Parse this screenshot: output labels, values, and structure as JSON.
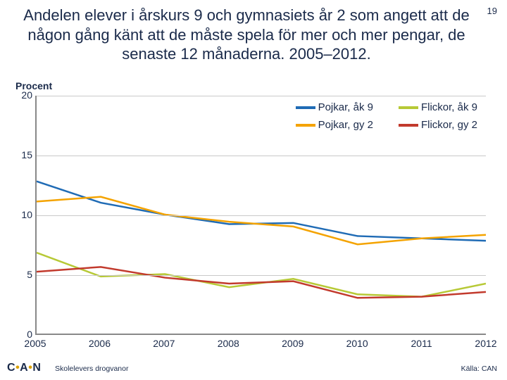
{
  "page_number": "19",
  "title": "Andelen elever i årskurs 9 och gymnasiets år 2 som angett att de någon gång känt att de måste spela för mer och mer pengar, de senaste 12 månaderna. 2005–2012.",
  "y_axis_label": "Procent",
  "chart": {
    "type": "line",
    "background_color": "#ffffff",
    "grid_color": "#c9c9c9",
    "axis_color": "#888888",
    "text_color": "#1a2a4a",
    "line_width": 2.5,
    "x": [
      2005,
      2006,
      2007,
      2008,
      2009,
      2010,
      2011,
      2012
    ],
    "xlim": [
      2005,
      2012
    ],
    "ylim": [
      0,
      20
    ],
    "ytick_step": 5,
    "yticks": [
      0,
      5,
      10,
      15,
      20
    ],
    "label_fontsize": 14,
    "legend_fontsize": 15,
    "series": [
      {
        "key": "pojkar_ak9",
        "label": "Pojkar,  åk 9",
        "color": "#1f6bb5",
        "values": [
          12.8,
          11.0,
          10.0,
          9.2,
          9.3,
          8.2,
          8.0,
          7.8
        ]
      },
      {
        "key": "flickor_ak9",
        "label": "Flickor, åk 9",
        "color": "#b7c936",
        "values": [
          6.8,
          4.8,
          5.0,
          3.9,
          4.6,
          3.3,
          3.1,
          4.2
        ]
      },
      {
        "key": "pojkar_gy2",
        "label": "Pojkar, gy 2",
        "color": "#f4a300",
        "values": [
          11.1,
          11.5,
          10.0,
          9.4,
          9.0,
          7.5,
          8.0,
          8.3
        ]
      },
      {
        "key": "flickor_gy2",
        "label": "Flickor, gy 2",
        "color": "#c23a2d",
        "values": [
          5.2,
          5.6,
          4.7,
          4.2,
          4.4,
          3.0,
          3.1,
          3.5
        ]
      }
    ]
  },
  "footer": {
    "logo_text": "C A N",
    "left": "Skolelevers drogvanor",
    "right": "Källa: CAN"
  }
}
